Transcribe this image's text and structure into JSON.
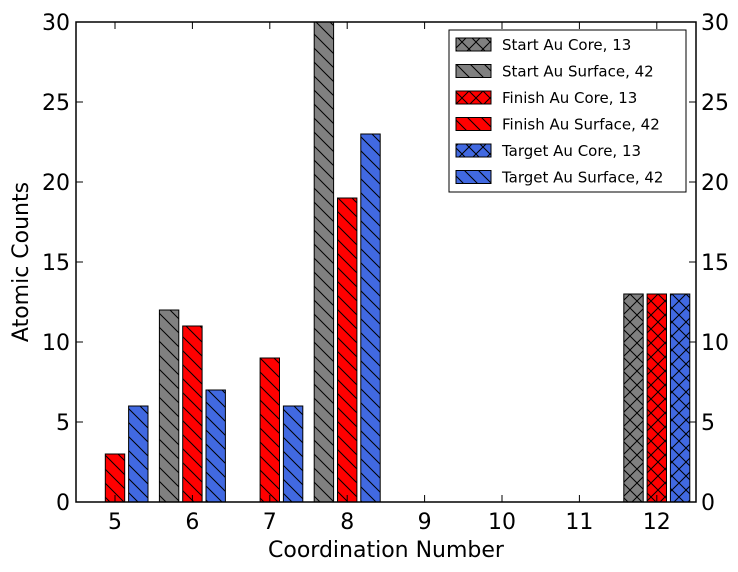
{
  "chart_data": {
    "type": "bar",
    "xlabel": "Coordination Number",
    "ylabel": "Atomic Counts",
    "categories": [
      "5",
      "6",
      "7",
      "8",
      "9",
      "10",
      "11",
      "12"
    ],
    "ylim": [
      0,
      30
    ],
    "yticks": [
      0,
      5,
      10,
      15,
      20,
      25,
      30
    ],
    "grid": false,
    "legend_position": "top-right",
    "groups": [
      {
        "name": "Start",
        "color": "#808080"
      },
      {
        "name": "Finish",
        "color": "#ff0000"
      },
      {
        "name": "Target",
        "color": "#4169e1"
      }
    ],
    "series": [
      {
        "name": "Start Au Core, 13",
        "group": 0,
        "hatch": "cross",
        "values": [
          0,
          0,
          0,
          0,
          0,
          0,
          0,
          13
        ]
      },
      {
        "name": "Start Au Surface, 42",
        "group": 0,
        "hatch": "backslash",
        "values": [
          0,
          12,
          0,
          30,
          0,
          0,
          0,
          0
        ]
      },
      {
        "name": "Finish Au Core, 13",
        "group": 1,
        "hatch": "cross",
        "values": [
          0,
          0,
          0,
          0,
          0,
          0,
          0,
          13
        ]
      },
      {
        "name": "Finish Au Surface, 42",
        "group": 1,
        "hatch": "backslash",
        "values": [
          3,
          11,
          9,
          19,
          0,
          0,
          0,
          0
        ]
      },
      {
        "name": "Target Au Core, 13",
        "group": 2,
        "hatch": "cross",
        "values": [
          0,
          0,
          0,
          0,
          0,
          0,
          0,
          13
        ]
      },
      {
        "name": "Target Au Surface, 42",
        "group": 2,
        "hatch": "backslash",
        "values": [
          6,
          7,
          6,
          23,
          0,
          0,
          0,
          0
        ]
      }
    ]
  }
}
